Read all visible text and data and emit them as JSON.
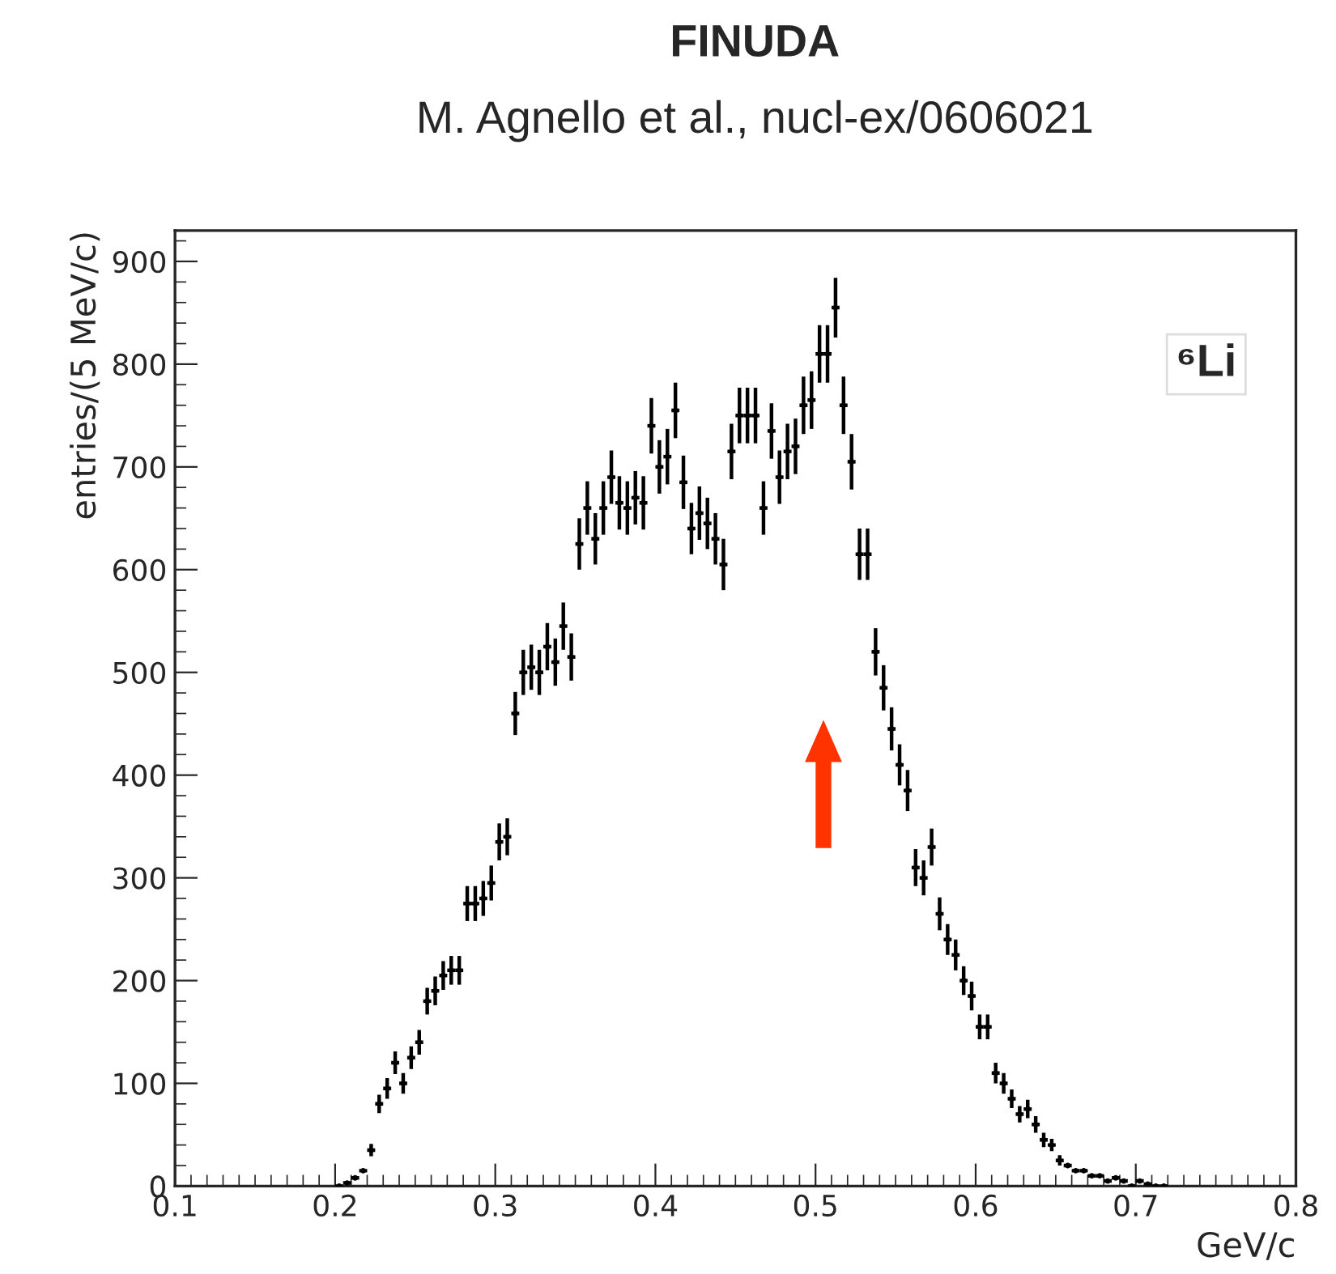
{
  "chart_data": {
    "type": "scatter",
    "title": "FINUDA",
    "subtitle": "M. Agnello et al., nucl-ex/0606021",
    "xlabel": "GeV/c",
    "ylabel": "entries/(5 MeV/c)",
    "annotations": [
      "⁶Li"
    ],
    "x": [
      0.2025,
      0.2075,
      0.2125,
      0.2175,
      0.2225,
      0.2275,
      0.2325,
      0.2375,
      0.2425,
      0.2475,
      0.2525,
      0.2575,
      0.2625,
      0.2675,
      0.2725,
      0.2775,
      0.2825,
      0.2875,
      0.2925,
      0.2975,
      0.3025,
      0.3075,
      0.3125,
      0.3175,
      0.3225,
      0.3275,
      0.3325,
      0.3375,
      0.3425,
      0.3475,
      0.3525,
      0.3575,
      0.3625,
      0.3675,
      0.3725,
      0.3775,
      0.3825,
      0.3875,
      0.3925,
      0.3975,
      0.4025,
      0.4075,
      0.4125,
      0.4175,
      0.4225,
      0.4275,
      0.4325,
      0.4375,
      0.4425,
      0.4475,
      0.4525,
      0.4575,
      0.4625,
      0.4675,
      0.4725,
      0.4775,
      0.4825,
      0.4875,
      0.4925,
      0.4975,
      0.5025,
      0.5075,
      0.5125,
      0.5175,
      0.5225,
      0.5275,
      0.5325,
      0.5375,
      0.5425,
      0.5475,
      0.5525,
      0.5575,
      0.5625,
      0.5675,
      0.5725,
      0.5775,
      0.5825,
      0.5875,
      0.5925,
      0.5975,
      0.6025,
      0.6075,
      0.6125,
      0.6175,
      0.6225,
      0.6275,
      0.6325,
      0.6375,
      0.6425,
      0.6475,
      0.6525,
      0.6575,
      0.6625,
      0.6675,
      0.6725,
      0.6775,
      0.6825,
      0.6875,
      0.6925,
      0.6975,
      0.7025,
      0.7075,
      0.7125,
      0.7175
    ],
    "series": [
      {
        "color": "#000000",
        "values": [
          0,
          3,
          8,
          15,
          35,
          80,
          95,
          120,
          100,
          125,
          140,
          180,
          190,
          205,
          210,
          210,
          275,
          275,
          280,
          295,
          335,
          340,
          460,
          500,
          505,
          500,
          525,
          510,
          545,
          515,
          625,
          660,
          630,
          660,
          690,
          665,
          660,
          670,
          665,
          740,
          700,
          710,
          755,
          685,
          640,
          655,
          645,
          630,
          605,
          715,
          750,
          750,
          750,
          660,
          735,
          690,
          715,
          720,
          760,
          765,
          810,
          810,
          855,
          760,
          705,
          615,
          615,
          520,
          485,
          445,
          410,
          385,
          310,
          300,
          330,
          265,
          240,
          225,
          200,
          185,
          155,
          155,
          110,
          100,
          85,
          70,
          75,
          60,
          45,
          40,
          25,
          20,
          15,
          15,
          10,
          10,
          5,
          8,
          5,
          0,
          5,
          2,
          0,
          0
        ],
        "errors": [
          null,
          null,
          null,
          null,
          6,
          9,
          10,
          11,
          10,
          11,
          12,
          13,
          14,
          14,
          14,
          14,
          17,
          17,
          17,
          17,
          18,
          18,
          21,
          22,
          22,
          22,
          23,
          23,
          23,
          23,
          25,
          26,
          25,
          26,
          26,
          26,
          26,
          26,
          26,
          27,
          26,
          27,
          27,
          26,
          25,
          26,
          25,
          25,
          25,
          27,
          27,
          27,
          27,
          26,
          27,
          26,
          27,
          27,
          28,
          28,
          28,
          28,
          29,
          28,
          27,
          25,
          25,
          23,
          22,
          21,
          20,
          20,
          18,
          17,
          18,
          16,
          15,
          15,
          14,
          14,
          12,
          12,
          10,
          10,
          9,
          8,
          9,
          8,
          7,
          6,
          5,
          null,
          null,
          null,
          null,
          null,
          null,
          null,
          null,
          null,
          null,
          null,
          null,
          null
        ],
        "xerrors": [
          0.0025,
          0.0025,
          0.0025,
          0.0025,
          0.0025,
          0.0025,
          0.0025,
          0.0025,
          0.0025,
          0.0025,
          0.0025,
          0.0025,
          0.0025,
          0.0025,
          0.0025,
          0.0025,
          0.0025,
          0.0025,
          0.0025,
          0.0025,
          0.0025,
          0.0025,
          0.0025,
          0.0025,
          0.0025,
          0.0025,
          0.0025,
          0.0025,
          0.0025,
          0.0025,
          0.0025,
          0.0025,
          0.0025,
          0.0025,
          0.0025,
          0.0025,
          0.0025,
          0.0025,
          0.0025,
          0.0025,
          0.0025,
          0.0025,
          0.0025,
          0.0025,
          0.0025,
          0.0025,
          0.0025,
          0.0025,
          0.0025,
          0.0025,
          0.0025,
          0.0025,
          0.0025,
          0.0025,
          0.0025,
          0.0025,
          0.0025,
          0.0025,
          0.0025,
          0.0025,
          0.0025,
          0.0025,
          0.0025,
          0.0025,
          0.0025,
          0.0025,
          0.0025,
          0.0025,
          0.0025,
          0.0025,
          0.0025,
          0.0025,
          0.0025,
          0.0025,
          0.0025,
          0.0025,
          0.0025,
          0.0025,
          0.0025,
          0.0025,
          0.0025,
          0.0025,
          0.0025,
          0.0025,
          0.0025,
          0.0025,
          0.0025,
          0.0025,
          0.0025,
          0.0025,
          0.0025,
          0.0025,
          0.0025,
          0.0025,
          0.0025,
          0.0025,
          0.0025,
          0.0025,
          0.0025,
          0.0025,
          0.0025,
          0.0025,
          0.0025,
          0.0025
        ]
      }
    ],
    "marker": "circle",
    "grid": false,
    "legend": false,
    "xlim": [
      0.1,
      0.8
    ],
    "xticks": [
      0.1,
      0.2,
      0.3,
      0.4,
      0.5,
      0.6,
      0.7,
      0.8
    ],
    "ylim": [
      0,
      930
    ],
    "yticks": [
      0,
      100,
      200,
      300,
      400,
      500,
      600,
      700,
      800,
      900
    ]
  }
}
